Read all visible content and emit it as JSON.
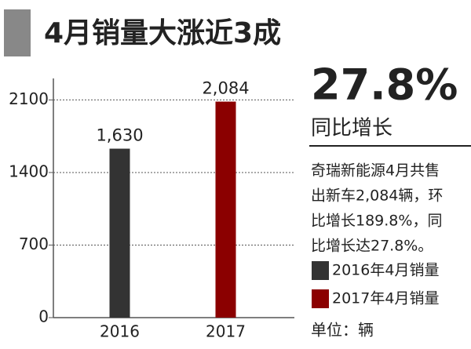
{
  "chart_data": {
    "type": "bar",
    "title": "4月销量大涨近3成",
    "categories": [
      "2016",
      "2017"
    ],
    "values": [
      1630,
      2084
    ],
    "value_labels": [
      "1,630",
      "2,084"
    ],
    "colors": [
      "#333333",
      "#8b0000"
    ],
    "ylim": [
      0,
      2300
    ],
    "yticks": [
      0,
      700,
      1400,
      2100
    ],
    "grid": true,
    "legend": [
      "2016年4月销量",
      "2017年4月销量"
    ],
    "headline": "27.8%",
    "headline_caption": "同比增长",
    "description": [
      "奇瑞新能源4月共售",
      "出新车2,084辆，环",
      "比增长189.8%，同",
      "比增长达27.8%。"
    ],
    "unit_note": "单位：辆"
  }
}
